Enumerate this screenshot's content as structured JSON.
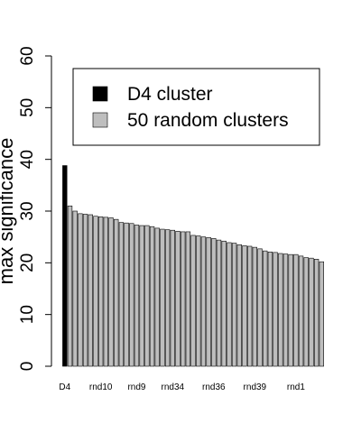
{
  "chart_data": {
    "type": "bar",
    "ylabel": "max significance",
    "categories": [
      "D4",
      null,
      null,
      null,
      null,
      null,
      null,
      "rnd10",
      null,
      null,
      null,
      null,
      null,
      null,
      "rnd9",
      null,
      null,
      null,
      null,
      null,
      null,
      "rnd34",
      null,
      null,
      null,
      null,
      null,
      null,
      null,
      "rnd36",
      null,
      null,
      null,
      null,
      null,
      null,
      null,
      "rnd39",
      null,
      null,
      null,
      null,
      null,
      null,
      null,
      "rnd1",
      null,
      null,
      null,
      null,
      null
    ],
    "series": [
      {
        "name": "D4 cluster",
        "color": "#000000",
        "values": [
          38.8,
          null,
          null,
          null,
          null,
          null,
          null,
          null,
          null,
          null,
          null,
          null,
          null,
          null,
          null,
          null,
          null,
          null,
          null,
          null,
          null,
          null,
          null,
          null,
          null,
          null,
          null,
          null,
          null,
          null,
          null,
          null,
          null,
          null,
          null,
          null,
          null,
          null,
          null,
          null,
          null,
          null,
          null,
          null,
          null,
          null,
          null,
          null,
          null,
          null,
          null
        ]
      },
      {
        "name": "50 random clusters",
        "color": "#bebebe",
        "values": [
          null,
          31.0,
          30.0,
          29.5,
          29.4,
          29.3,
          29.0,
          28.9,
          28.8,
          28.7,
          28.4,
          27.8,
          27.7,
          27.6,
          27.3,
          27.2,
          27.2,
          27.0,
          26.7,
          26.5,
          26.4,
          26.3,
          26.1,
          26.0,
          26.0,
          25.3,
          25.2,
          25.0,
          24.9,
          24.7,
          24.4,
          24.2,
          23.9,
          23.8,
          23.5,
          23.3,
          23.2,
          23.0,
          22.7,
          22.3,
          22.1,
          22.0,
          21.8,
          21.7,
          21.6,
          21.6,
          21.3,
          21.0,
          20.9,
          20.7,
          20.2
        ]
      }
    ],
    "ylim": [
      0,
      60
    ],
    "yticks": [
      0,
      10,
      20,
      30,
      40,
      50,
      60
    ],
    "legend": "top-right"
  }
}
